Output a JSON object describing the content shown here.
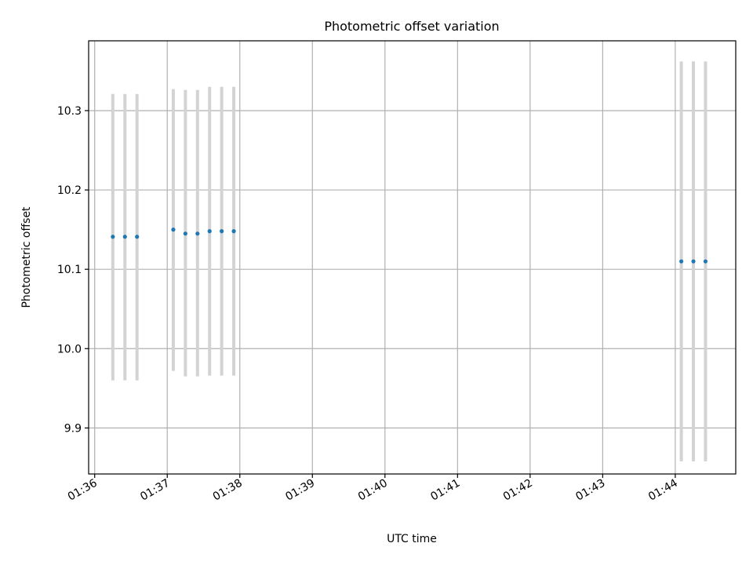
{
  "chart_data": {
    "type": "scatter",
    "title": "Photometric offset variation",
    "xlabel": "UTC time",
    "ylabel": "Photometric offset",
    "x_is_time": true,
    "xlim": [
      "01:35:55",
      "01:44:50"
    ],
    "ylim": [
      9.842,
      10.388
    ],
    "x_ticks": [
      "01:36",
      "01:37",
      "01:38",
      "01:39",
      "01:40",
      "01:41",
      "01:42",
      "01:43",
      "01:44"
    ],
    "y_ticks": [
      9.9,
      10.0,
      10.1,
      10.2,
      10.3
    ],
    "y_tick_labels": [
      "9.9",
      "10.0",
      "10.1",
      "10.2",
      "10.3"
    ],
    "grid": true,
    "legend": "none",
    "marker_color": "#1f77b4",
    "errorbar_color": "#d3d3d3",
    "series": [
      {
        "x": [
          "01:36:15",
          "01:36:25",
          "01:36:35",
          "01:37:05",
          "01:37:15",
          "01:37:25",
          "01:37:35",
          "01:37:45",
          "01:37:55",
          "01:44:05",
          "01:44:15",
          "01:44:25"
        ],
        "y": [
          10.141,
          10.141,
          10.141,
          10.15,
          10.145,
          10.145,
          10.148,
          10.148,
          10.148,
          10.11,
          10.11,
          10.11
        ],
        "yerr_low": [
          9.96,
          9.96,
          9.96,
          9.972,
          9.965,
          9.965,
          9.966,
          9.966,
          9.966,
          9.858,
          9.858,
          9.858
        ],
        "yerr_high": [
          10.321,
          10.321,
          10.321,
          10.327,
          10.326,
          10.326,
          10.33,
          10.33,
          10.33,
          10.362,
          10.362,
          10.362
        ]
      }
    ]
  }
}
